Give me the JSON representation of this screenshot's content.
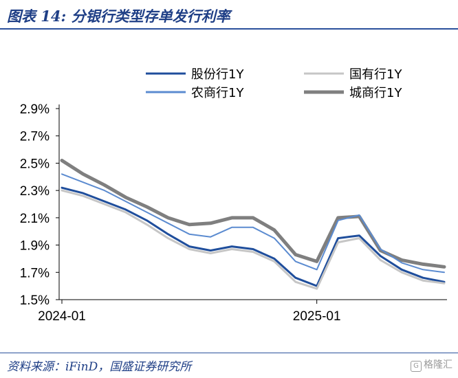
{
  "chart_data": {
    "type": "line",
    "title": "图表 14: 分银行类型存单发行利率",
    "xlabel": "",
    "ylabel": "",
    "ylim": [
      1.5,
      2.9
    ],
    "y_ticks": [
      "2.9%",
      "2.7%",
      "2.5%",
      "2.3%",
      "2.1%",
      "1.9%",
      "1.7%",
      "1.5%"
    ],
    "x_ticks": [
      "2024-01",
      "2025-01"
    ],
    "grid": false,
    "legend_position": "top",
    "x": [
      "2024-01",
      "2024-02",
      "2024-03",
      "2024-04",
      "2024-05",
      "2024-06",
      "2024-07",
      "2024-08",
      "2024-09",
      "2024-10",
      "2024-11",
      "2024-12",
      "2025-01",
      "2025-02",
      "2025-03",
      "2025-04",
      "2025-05",
      "2025-06",
      "2025-07"
    ],
    "series": [
      {
        "name": "股份行1Y",
        "color": "#1f4e9c",
        "width": 3,
        "values": [
          2.32,
          2.28,
          2.22,
          2.16,
          2.08,
          1.98,
          1.89,
          1.86,
          1.89,
          1.87,
          1.8,
          1.66,
          1.6,
          1.95,
          1.97,
          1.82,
          1.72,
          1.66,
          1.63
        ]
      },
      {
        "name": "国有行1Y",
        "color": "#c6c6c6",
        "width": 3,
        "values": [
          2.3,
          2.26,
          2.2,
          2.14,
          2.05,
          1.95,
          1.87,
          1.84,
          1.87,
          1.85,
          1.78,
          1.63,
          1.58,
          1.92,
          1.95,
          1.79,
          1.7,
          1.64,
          1.62
        ]
      },
      {
        "name": "农商行1Y",
        "color": "#5b8bd0",
        "width": 2,
        "values": [
          2.42,
          2.36,
          2.3,
          2.22,
          2.14,
          2.06,
          1.98,
          1.96,
          2.03,
          2.03,
          1.95,
          1.78,
          1.72,
          2.08,
          2.12,
          1.87,
          1.77,
          1.72,
          1.7
        ]
      },
      {
        "name": "城商行1Y",
        "color": "#7f7f7f",
        "width": 5,
        "values": [
          2.52,
          2.42,
          2.34,
          2.25,
          2.18,
          2.1,
          2.05,
          2.06,
          2.1,
          2.1,
          2.01,
          1.83,
          1.78,
          2.1,
          2.11,
          1.86,
          1.79,
          1.76,
          1.74
        ]
      }
    ]
  },
  "source": "资料来源：iFinD，国盛证券研究所",
  "watermark": "格隆汇",
  "watermark_logo": "G"
}
